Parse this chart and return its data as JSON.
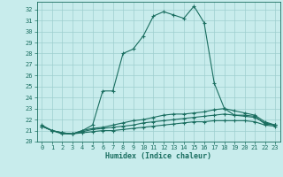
{
  "xlabel": "Humidex (Indice chaleur)",
  "background_color": "#c8ecec",
  "grid_color": "#9ecece",
  "line_color": "#1a6e60",
  "xlim": [
    -0.5,
    23.5
  ],
  "ylim": [
    20,
    32.7
  ],
  "xticks": [
    0,
    1,
    2,
    3,
    4,
    5,
    6,
    7,
    8,
    9,
    10,
    11,
    12,
    13,
    14,
    15,
    16,
    17,
    18,
    19,
    20,
    21,
    22,
    23
  ],
  "yticks": [
    20,
    21,
    22,
    23,
    24,
    25,
    26,
    27,
    28,
    29,
    30,
    31,
    32
  ],
  "curve1_x": [
    0,
    1,
    2,
    3,
    4,
    5,
    6,
    7,
    8,
    9,
    10,
    11,
    12,
    13,
    14,
    15,
    16,
    17,
    18,
    19,
    20,
    21,
    22,
    23
  ],
  "curve1_y": [
    21.5,
    21.0,
    20.7,
    20.7,
    21.0,
    21.5,
    24.6,
    24.6,
    28.0,
    28.4,
    29.6,
    31.4,
    31.8,
    31.5,
    31.2,
    32.3,
    30.8,
    25.3,
    23.0,
    22.4,
    22.4,
    22.3,
    21.6,
    21.5
  ],
  "curve2_x": [
    0,
    1,
    2,
    3,
    4,
    5,
    6,
    7,
    8,
    9,
    10,
    11,
    12,
    13,
    14,
    15,
    16,
    17,
    18,
    19,
    20,
    21,
    22,
    23
  ],
  "curve2_y": [
    21.4,
    21.0,
    20.8,
    20.7,
    21.0,
    21.2,
    21.3,
    21.5,
    21.7,
    21.9,
    22.0,
    22.2,
    22.4,
    22.5,
    22.5,
    22.6,
    22.7,
    22.9,
    23.0,
    22.8,
    22.6,
    22.4,
    21.8,
    21.5
  ],
  "curve3_x": [
    0,
    1,
    2,
    3,
    4,
    5,
    6,
    7,
    8,
    9,
    10,
    11,
    12,
    13,
    14,
    15,
    16,
    17,
    18,
    19,
    20,
    21,
    22,
    23
  ],
  "curve3_y": [
    21.4,
    21.0,
    20.8,
    20.7,
    20.9,
    21.1,
    21.2,
    21.3,
    21.4,
    21.5,
    21.7,
    21.8,
    21.9,
    22.0,
    22.1,
    22.2,
    22.3,
    22.4,
    22.5,
    22.4,
    22.3,
    22.2,
    21.7,
    21.5
  ],
  "curve4_x": [
    0,
    1,
    2,
    3,
    4,
    5,
    6,
    7,
    8,
    9,
    10,
    11,
    12,
    13,
    14,
    15,
    16,
    17,
    18,
    19,
    20,
    21,
    22,
    23
  ],
  "curve4_y": [
    21.4,
    21.0,
    20.8,
    20.7,
    20.8,
    20.9,
    21.0,
    21.0,
    21.1,
    21.2,
    21.3,
    21.4,
    21.5,
    21.6,
    21.7,
    21.8,
    21.8,
    21.9,
    21.9,
    21.9,
    21.9,
    21.8,
    21.5,
    21.4
  ]
}
